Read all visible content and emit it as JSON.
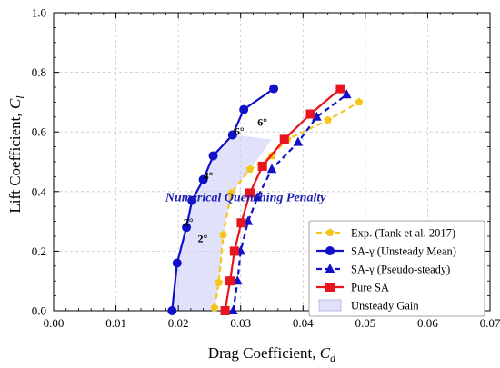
{
  "chart_data": {
    "type": "line",
    "xlabel": "Drag Coefficient, ",
    "xlabel_symbol": "C",
    "xlabel_sub": "d",
    "ylabel": "Lift Coefficient, ",
    "ylabel_symbol": "C",
    "ylabel_sub": "l",
    "xlim": [
      0.0,
      0.07
    ],
    "ylim": [
      0.0,
      1.0
    ],
    "xticks": [
      "0.00",
      "0.01",
      "0.02",
      "0.03",
      "0.04",
      "0.05",
      "0.06",
      "0.07"
    ],
    "yticks": [
      "0.0",
      "0.2",
      "0.4",
      "0.6",
      "0.8",
      "1.0"
    ],
    "grid": true,
    "legend_position": "bottom-right",
    "series": [
      {
        "name": "Exp. (Tank et al. 2017)",
        "color": "#f5c518",
        "linestyle": "dashed",
        "marker": "pentagon",
        "x": [
          0.0258,
          0.0265,
          0.0272,
          0.0285,
          0.0315,
          0.035,
          0.0375,
          0.044,
          0.049
        ],
        "y": [
          0.01,
          0.095,
          0.255,
          0.395,
          0.475,
          0.52,
          0.575,
          0.64,
          0.7
        ]
      },
      {
        "name": "SA-γ (Unsteady Mean)",
        "color": "#1010c8",
        "linestyle": "solid",
        "marker": "circle",
        "x": [
          0.019,
          0.0198,
          0.0213,
          0.0222,
          0.024,
          0.0256,
          0.0287,
          0.0305,
          0.0353
        ],
        "y": [
          0.0,
          0.16,
          0.28,
          0.37,
          0.44,
          0.52,
          0.59,
          0.675,
          0.745
        ]
      },
      {
        "name": "SA-γ (Pseudo-steady)",
        "color": "#1010c8",
        "linestyle": "dashed",
        "marker": "triangle",
        "x": [
          0.0288,
          0.0295,
          0.03,
          0.0312,
          0.0327,
          0.035,
          0.0392,
          0.0422,
          0.047
        ],
        "y": [
          0.0,
          0.1,
          0.2,
          0.3,
          0.38,
          0.475,
          0.565,
          0.65,
          0.725
        ]
      },
      {
        "name": "Pure SA",
        "color": "#e8141e",
        "linestyle": "solid",
        "marker": "square",
        "x": [
          0.0275,
          0.0283,
          0.029,
          0.0301,
          0.0315,
          0.0335,
          0.037,
          0.0412,
          0.046
        ],
        "y": [
          0.0,
          0.1,
          0.2,
          0.295,
          0.395,
          0.485,
          0.575,
          0.66,
          0.745
        ]
      }
    ],
    "shaded_region": {
      "name": "Unsteady Gain",
      "color": "#c8c8f5",
      "x": [
        0.019,
        0.0198,
        0.0213,
        0.0222,
        0.024,
        0.0256,
        0.0287,
        0.035,
        0.0315,
        0.0285,
        0.0272,
        0.0265,
        0.0258
      ],
      "y": [
        0.0,
        0.16,
        0.28,
        0.37,
        0.44,
        0.52,
        0.59,
        0.575,
        0.475,
        0.395,
        0.255,
        0.095,
        0.0
      ]
    },
    "annotations": [
      {
        "text": "Numerical Quenching Penalty",
        "x": 0.0308,
        "y": 0.368,
        "style": "region"
      },
      {
        "text": "6°",
        "x": 0.0335,
        "y": 0.62,
        "style": "angle"
      },
      {
        "text": "6°",
        "x": 0.0298,
        "y": 0.59,
        "style": "angle"
      },
      {
        "text": "4°",
        "x": 0.0248,
        "y": 0.44,
        "style": "angle"
      },
      {
        "text": "2°",
        "x": 0.0216,
        "y": 0.285,
        "style": "angle"
      },
      {
        "text": "2°",
        "x": 0.0239,
        "y": 0.23,
        "style": "angle"
      }
    ]
  }
}
